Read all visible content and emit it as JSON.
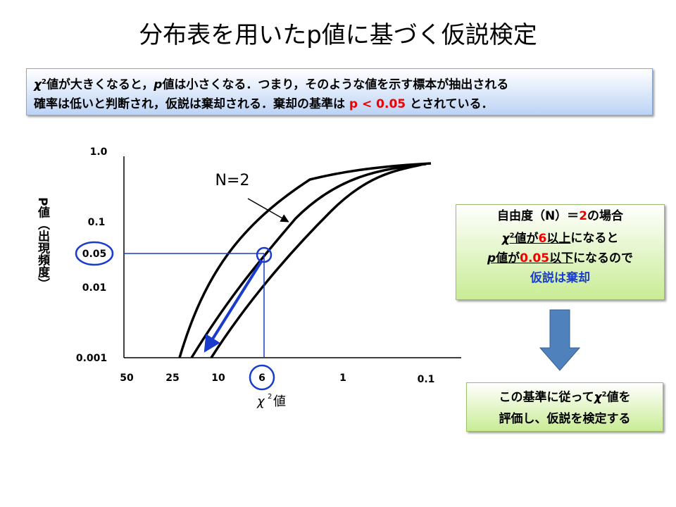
{
  "title": "分布表を用いたp値に基づく仮説検定",
  "note": {
    "line1": [
      "χ",
      "2",
      "値が大きくなると，",
      "p",
      "値は小さくなる．つまり，そのような値を示す標本が抽出される"
    ],
    "line2": [
      "確率は低いと判断され，仮説は棄却される．棄却の基準は ",
      "p < 0.05",
      " とされている．"
    ]
  },
  "graph": {
    "y_label": "P値（出現頻度）",
    "y_ticks": [
      "1.0",
      "0.1",
      "0.05",
      "0.01",
      "0.001"
    ],
    "x_ticks": [
      "50",
      "25",
      "10",
      "6",
      "1",
      "0.1"
    ],
    "x_label": [
      "χ",
      "2",
      "値"
    ],
    "curve_label": "N=2"
  },
  "box1": {
    "line1": [
      "自由度（N）＝",
      "2",
      "の場合"
    ],
    "line2": [
      "χ",
      "2",
      "値が",
      "6",
      "以上",
      "になると"
    ],
    "line3": [
      "p",
      "値が",
      "0.05",
      "以下",
      "になるので"
    ],
    "line4": "仮説は棄却"
  },
  "box2": {
    "line1": [
      "この基準に従って",
      "χ",
      "2",
      "値を"
    ],
    "line2": "評価し、仮説を検定する"
  }
}
